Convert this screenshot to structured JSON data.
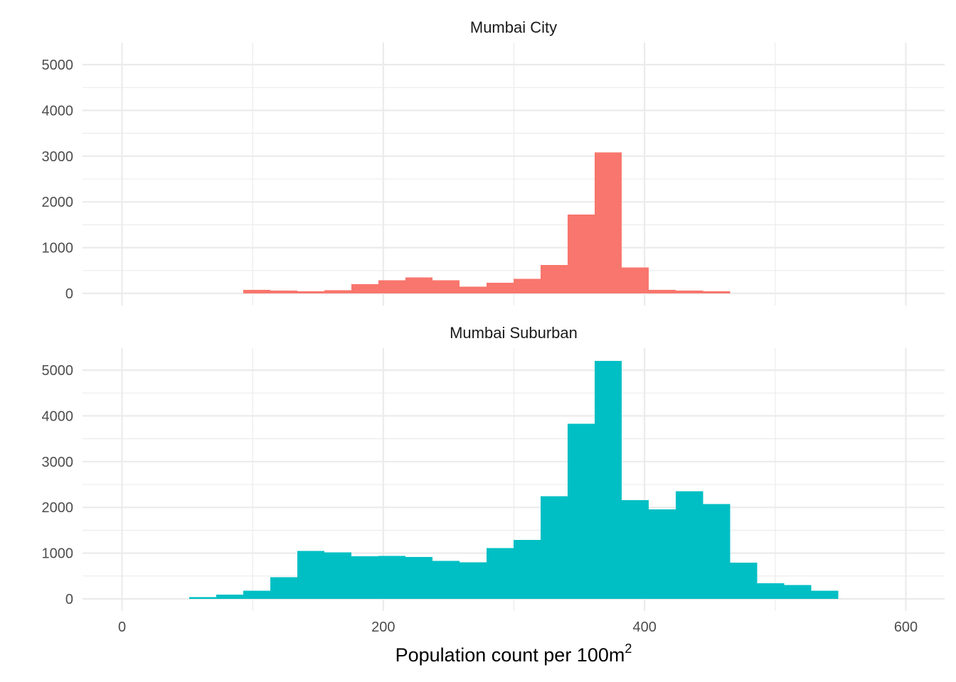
{
  "chart_data": {
    "type": "bar",
    "subtype": "histogram (faceted)",
    "xlabel": "Population count per 100m",
    "xlabel_superscript": "2",
    "ylabel": "",
    "xlim": [
      -15,
      630
    ],
    "ylim": [
      -450,
      5000
    ],
    "x_ticks": [
      0,
      200,
      400,
      600
    ],
    "y_ticks": [
      0,
      1000,
      2000,
      3000,
      4000,
      5000
    ],
    "grid": true,
    "legend": "none",
    "panels": [
      {
        "name": "Mumbai City",
        "color": "#F8766D",
        "bins": [
          {
            "x0": 92.8,
            "x1": 113.5,
            "count": 75
          },
          {
            "x0": 113.5,
            "x1": 134.2,
            "count": 60
          },
          {
            "x0": 134.2,
            "x1": 154.9,
            "count": 45
          },
          {
            "x0": 154.9,
            "x1": 175.6,
            "count": 70
          },
          {
            "x0": 175.6,
            "x1": 196.3,
            "count": 200
          },
          {
            "x0": 196.3,
            "x1": 217.0,
            "count": 290
          },
          {
            "x0": 217.0,
            "x1": 237.7,
            "count": 350
          },
          {
            "x0": 237.7,
            "x1": 258.4,
            "count": 290
          },
          {
            "x0": 258.4,
            "x1": 279.1,
            "count": 150
          },
          {
            "x0": 279.1,
            "x1": 299.8,
            "count": 230
          },
          {
            "x0": 299.8,
            "x1": 320.5,
            "count": 320
          },
          {
            "x0": 320.5,
            "x1": 341.2,
            "count": 620
          },
          {
            "x0": 341.2,
            "x1": 361.9,
            "count": 1720
          },
          {
            "x0": 361.9,
            "x1": 382.6,
            "count": 3080
          },
          {
            "x0": 382.6,
            "x1": 403.3,
            "count": 570
          },
          {
            "x0": 403.3,
            "x1": 424.0,
            "count": 80
          },
          {
            "x0": 424.0,
            "x1": 444.7,
            "count": 60
          },
          {
            "x0": 444.7,
            "x1": 465.4,
            "count": 45
          }
        ]
      },
      {
        "name": "Mumbai Suburban",
        "color": "#00BFC4",
        "bins": [
          {
            "x0": 51.4,
            "x1": 72.1,
            "count": 40
          },
          {
            "x0": 72.1,
            "x1": 92.8,
            "count": 90
          },
          {
            "x0": 92.8,
            "x1": 113.5,
            "count": 180
          },
          {
            "x0": 113.5,
            "x1": 134.2,
            "count": 470
          },
          {
            "x0": 134.2,
            "x1": 154.9,
            "count": 1050
          },
          {
            "x0": 154.9,
            "x1": 175.6,
            "count": 1020
          },
          {
            "x0": 175.6,
            "x1": 196.3,
            "count": 930
          },
          {
            "x0": 196.3,
            "x1": 217.0,
            "count": 940
          },
          {
            "x0": 217.0,
            "x1": 237.7,
            "count": 920
          },
          {
            "x0": 237.7,
            "x1": 258.4,
            "count": 830
          },
          {
            "x0": 258.4,
            "x1": 279.1,
            "count": 800
          },
          {
            "x0": 279.1,
            "x1": 299.8,
            "count": 1110
          },
          {
            "x0": 299.8,
            "x1": 320.5,
            "count": 1290
          },
          {
            "x0": 320.5,
            "x1": 341.2,
            "count": 2240
          },
          {
            "x0": 341.2,
            "x1": 361.9,
            "count": 3830
          },
          {
            "x0": 361.9,
            "x1": 382.6,
            "count": 5200
          },
          {
            "x0": 382.6,
            "x1": 403.3,
            "count": 2160
          },
          {
            "x0": 403.3,
            "x1": 424.0,
            "count": 1960
          },
          {
            "x0": 424.0,
            "x1": 444.7,
            "count": 2350
          },
          {
            "x0": 444.7,
            "x1": 465.4,
            "count": 2070
          },
          {
            "x0": 465.4,
            "x1": 486.1,
            "count": 790
          },
          {
            "x0": 486.1,
            "x1": 506.8,
            "count": 340
          },
          {
            "x0": 506.8,
            "x1": 527.5,
            "count": 300
          },
          {
            "x0": 527.5,
            "x1": 548.2,
            "count": 180
          }
        ]
      }
    ]
  }
}
